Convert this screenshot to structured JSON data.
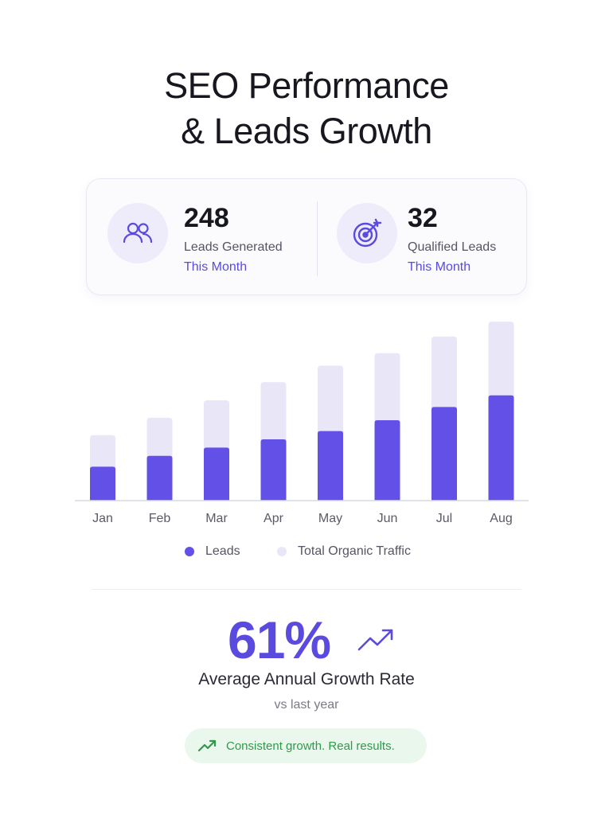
{
  "header": {
    "title_line1": "SEO Performance",
    "title_line2": "& Leads Growth"
  },
  "stats": [
    {
      "value": "248",
      "label": "Leads Generated",
      "period": "This Month",
      "icon": "users-icon"
    },
    {
      "value": "32",
      "label": "Qualified Leads",
      "period": "This Month",
      "icon": "target-icon"
    }
  ],
  "colors": {
    "accent": "#5a4ae0",
    "leads_bar": "#6350e6",
    "traffic_bar": "#e9e6f8",
    "success": "#2f9a4a",
    "success_bg": "#eaf7ec"
  },
  "chart_data": {
    "type": "bar",
    "stacked": true,
    "categories": [
      "Jan",
      "Feb",
      "Mar",
      "Apr",
      "May",
      "Jun",
      "Jul",
      "Aug"
    ],
    "series": [
      {
        "name": "Leads",
        "values": [
          41,
          54,
          64,
          74,
          84,
          97,
          113,
          127
        ]
      },
      {
        "name": "Total Organic Traffic",
        "values": [
          38,
          46,
          57,
          69,
          79,
          81,
          85,
          89
        ]
      }
    ],
    "ylim": [
      0,
      220
    ],
    "grid": false,
    "legend": "bottom"
  },
  "summary": {
    "growth_value": "61%",
    "growth_label": "Average Annual Growth Rate",
    "growth_sub": "vs last year",
    "pill_text": "Consistent growth. Real results."
  }
}
